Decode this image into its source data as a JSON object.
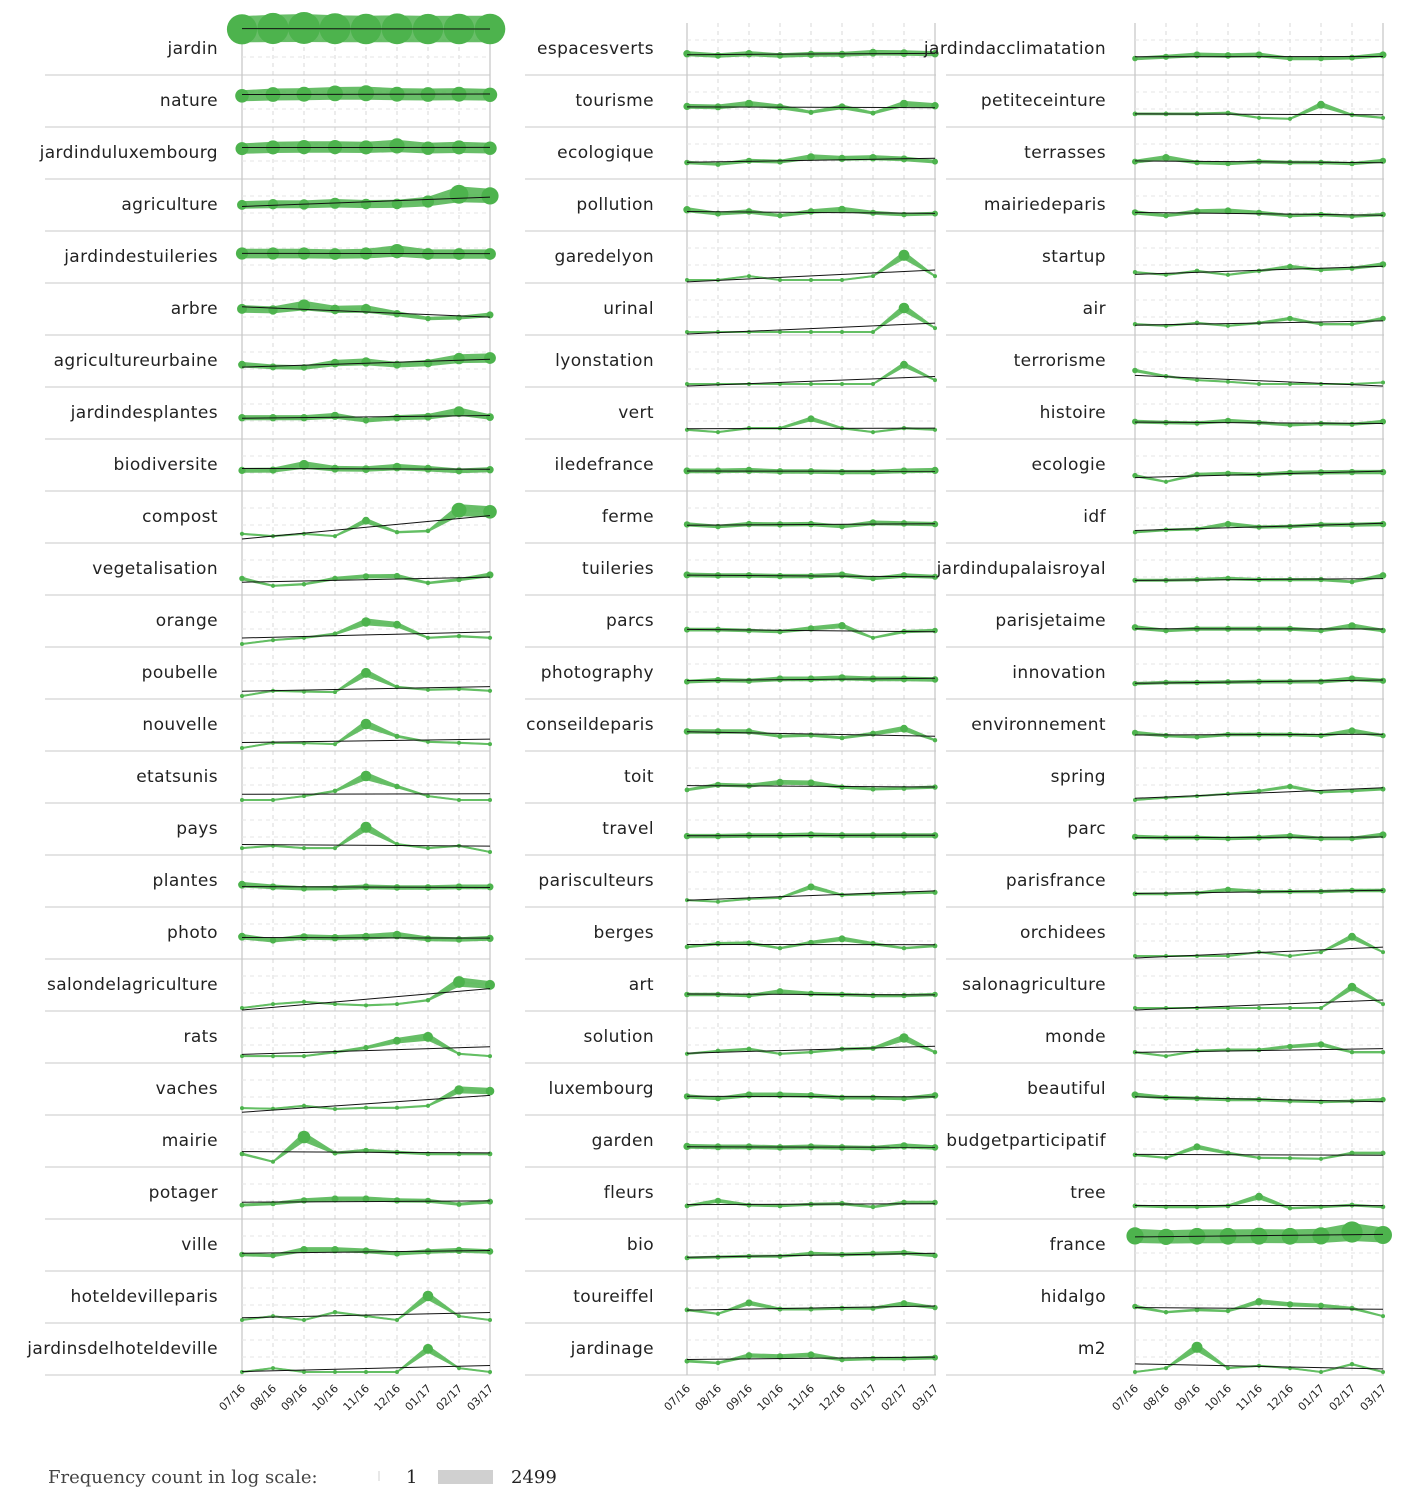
{
  "chart_data": {
    "type": "line",
    "months": [
      "07/16",
      "08/16",
      "09/16",
      "10/16",
      "11/16",
      "12/16",
      "01/17",
      "02/17",
      "03/17"
    ],
    "legend": {
      "title": "Frequency count in log scale:",
      "min_label": "1",
      "max_label": "2499",
      "min": 1,
      "max": 2499
    },
    "colors": {
      "series": "#63bf63",
      "fill": "#4db34d",
      "trend": "#111111",
      "grid": "#c8c8c8"
    },
    "columns": [
      [
        {
          "term": "jardin",
          "c": [
            2000,
            2300,
            2499,
            2200,
            2100,
            2150,
            2050,
            2100,
            2100
          ]
        },
        {
          "term": "nature",
          "c": [
            150,
            190,
            200,
            230,
            240,
            200,
            190,
            200,
            180
          ]
        },
        {
          "term": "jardinduluxembourg",
          "c": [
            130,
            160,
            170,
            170,
            160,
            210,
            140,
            160,
            140
          ]
        },
        {
          "term": "agriculture",
          "c": [
            60,
            68,
            66,
            80,
            70,
            72,
            110,
            400,
            300
          ]
        },
        {
          "term": "jardindestuileries",
          "c": [
            110,
            110,
            110,
            100,
            110,
            170,
            100,
            100,
            100
          ]
        },
        {
          "term": "arbre",
          "c": [
            60,
            50,
            110,
            55,
            60,
            25,
            10,
            12,
            20
          ]
        },
        {
          "term": "agricultureurbaine",
          "c": [
            30,
            20,
            18,
            40,
            50,
            30,
            40,
            90,
            100
          ]
        },
        {
          "term": "jardindesplantes",
          "c": [
            25,
            25,
            25,
            35,
            15,
            25,
            30,
            75,
            28
          ]
        },
        {
          "term": "biodiversite",
          "c": [
            22,
            23,
            60,
            30,
            28,
            40,
            30,
            20,
            25
          ]
        },
        {
          "term": "compost",
          "c": [
            2,
            1,
            2,
            1,
            30,
            3,
            4,
            200,
            150
          ]
        },
        {
          "term": "vegetalisation",
          "c": [
            10,
            2,
            3,
            10,
            15,
            16,
            4,
            8,
            20
          ]
        },
        {
          "term": "orange",
          "c": [
            0,
            1,
            2,
            5,
            50,
            30,
            2,
            3,
            2
          ]
        },
        {
          "term": "poubelle",
          "c": [
            0,
            1.5,
            1.2,
            1,
            60,
            4,
            2,
            2.5,
            1.5
          ]
        },
        {
          "term": "nouvelle",
          "c": [
            0,
            1.5,
            1.4,
            1,
            70,
            7,
            2,
            1.5,
            1
          ]
        },
        {
          "term": "etatsunis",
          "c": [
            0,
            0,
            1,
            4,
            70,
            10,
            1,
            0,
            0
          ]
        },
        {
          "term": "pays",
          "c": [
            1,
            2,
            1,
            1,
            80,
            3,
            1,
            2,
            0
          ]
        },
        {
          "term": "plantes",
          "c": [
            30,
            20,
            15,
            16,
            20,
            18,
            18,
            20,
            20
          ]
        },
        {
          "term": "photo",
          "c": [
            30,
            15,
            28,
            25,
            30,
            40,
            20,
            18,
            22
          ]
        },
        {
          "term": "salondelagriculture",
          "c": [
            0,
            1,
            2,
            1,
            0.6,
            1,
            3,
            100,
            60
          ]
        },
        {
          "term": "rats",
          "c": [
            1,
            1,
            1,
            3,
            8,
            30,
            60,
            2,
            1
          ]
        },
        {
          "term": "vaches",
          "c": [
            1,
            0.8,
            2,
            0.7,
            1.1,
            1.1,
            2,
            50,
            40
          ]
        },
        {
          "term": "mairie",
          "c": [
            5,
            0.5,
            120,
            6,
            10,
            7,
            5,
            5,
            5
          ]
        },
        {
          "term": "potager",
          "c": [
            6,
            8,
            15,
            20,
            20,
            15,
            14,
            7,
            12
          ]
        },
        {
          "term": "ville",
          "c": [
            10,
            8,
            25,
            25,
            20,
            12,
            18,
            22,
            18
          ]
        },
        {
          "term": "hoteldevilleparis",
          "c": [
            0,
            1,
            0,
            3,
            1,
            0,
            70,
            1,
            0
          ]
        },
        {
          "term": "jardinsdelhoteldeville",
          "c": [
            0,
            1,
            0,
            0,
            0,
            0,
            60,
            1,
            0
          ]
        }
      ],
      [
        {
          "term": "espacesverts",
          "c": [
            25,
            18,
            25,
            18,
            22,
            22,
            30,
            28,
            25
          ]
        },
        {
          "term": "tourisme",
          "c": [
            22,
            20,
            35,
            20,
            7,
            20,
            6,
            35,
            25
          ]
        },
        {
          "term": "ecologique",
          "c": [
            10,
            7,
            14,
            12,
            28,
            22,
            25,
            20,
            12
          ]
        },
        {
          "term": "pollution",
          "c": [
            25,
            12,
            18,
            8,
            18,
            26,
            14,
            10,
            12
          ]
        },
        {
          "term": "garedelyon",
          "c": [
            0,
            0,
            1,
            0,
            0,
            0,
            1,
            80,
            1
          ]
        },
        {
          "term": "urinal",
          "c": [
            0,
            0,
            0,
            0,
            0,
            0,
            0,
            70,
            1
          ]
        },
        {
          "term": "lyonstation",
          "c": [
            0,
            0,
            0,
            0,
            0,
            0,
            0,
            30,
            1
          ]
        },
        {
          "term": "vert",
          "c": [
            2,
            1,
            3,
            3,
            20,
            3,
            1,
            3,
            2
          ]
        },
        {
          "term": "iledefrance",
          "c": [
            20,
            20,
            22,
            18,
            18,
            16,
            16,
            20,
            22
          ]
        },
        {
          "term": "ferme",
          "c": [
            15,
            10,
            16,
            15,
            16,
            10,
            20,
            18,
            16
          ]
        },
        {
          "term": "tuileries",
          "c": [
            20,
            18,
            18,
            16,
            16,
            20,
            10,
            18,
            14
          ]
        },
        {
          "term": "parcs",
          "c": [
            12,
            12,
            10,
            8,
            15,
            25,
            2,
            8,
            10
          ]
        },
        {
          "term": "photography",
          "c": [
            12,
            16,
            14,
            20,
            20,
            24,
            20,
            20,
            18
          ]
        },
        {
          "term": "conseildeparis",
          "c": [
            18,
            18,
            18,
            7,
            9,
            5,
            12,
            30,
            3
          ]
        },
        {
          "term": "toit",
          "c": [
            5,
            14,
            12,
            22,
            20,
            9,
            6,
            7,
            9
          ]
        },
        {
          "term": "travel",
          "c": [
            16,
            16,
            18,
            18,
            20,
            18,
            18,
            18,
            18
          ]
        },
        {
          "term": "parisculteurs",
          "c": [
            1,
            0.5,
            1.5,
            2,
            20,
            4,
            5,
            6,
            7
          ]
        },
        {
          "term": "berges",
          "c": [
            4,
            8,
            9,
            3,
            10,
            20,
            8,
            3,
            5
          ]
        },
        {
          "term": "art",
          "c": [
            10,
            10,
            8,
            18,
            12,
            10,
            8,
            8,
            10
          ]
        },
        {
          "term": "solution",
          "c": [
            2,
            4,
            6,
            2,
            3,
            6,
            7,
            50,
            3
          ]
        },
        {
          "term": "luxembourg",
          "c": [
            15,
            10,
            20,
            20,
            18,
            12,
            12,
            10,
            18
          ]
        },
        {
          "term": "garden",
          "c": [
            22,
            20,
            20,
            18,
            20,
            18,
            16,
            24,
            18
          ]
        },
        {
          "term": "fleurs",
          "c": [
            5,
            14,
            6,
            5,
            7,
            8,
            4,
            10,
            10
          ]
        },
        {
          "term": "bio",
          "c": [
            5,
            6,
            7,
            7,
            12,
            10,
            12,
            14,
            8
          ]
        },
        {
          "term": "toureiffel",
          "c": [
            5,
            2,
            20,
            6,
            6,
            7,
            7,
            18,
            8
          ]
        },
        {
          "term": "jardinage",
          "c": [
            6,
            4,
            18,
            15,
            20,
            8,
            10,
            10,
            12
          ]
        }
      ],
      [
        {
          "term": "jardindacclimatation",
          "c": [
            10,
            14,
            20,
            18,
            20,
            10,
            10,
            12,
            20
          ]
        },
        {
          "term": "petiteceinture",
          "c": [
            5,
            5,
            5,
            6,
            2,
            1.5,
            30,
            4,
            2
          ]
        },
        {
          "term": "terrasses",
          "c": [
            12,
            25,
            10,
            8,
            12,
            10,
            10,
            8,
            14
          ]
        },
        {
          "term": "mairiedeparis",
          "c": [
            15,
            8,
            18,
            20,
            14,
            8,
            10,
            7,
            10
          ]
        },
        {
          "term": "startup",
          "c": [
            3,
            1.5,
            4,
            1.5,
            4,
            10,
            5,
            7,
            15
          ]
        },
        {
          "term": "air",
          "c": [
            3,
            2,
            4,
            2,
            4,
            10,
            3,
            3,
            10
          ]
        },
        {
          "term": "terrorisme",
          "c": [
            10,
            3,
            1,
            0.5,
            0,
            0,
            0,
            0,
            0.3
          ]
        },
        {
          "term": "histoire",
          "c": [
            12,
            10,
            9,
            14,
            10,
            6,
            8,
            7,
            12
          ]
        },
        {
          "term": "ecologie",
          "c": [
            8,
            2,
            10,
            12,
            10,
            14,
            15,
            16,
            16
          ]
        },
        {
          "term": "idf",
          "c": [
            3,
            5,
            6,
            16,
            9,
            10,
            14,
            14,
            16
          ]
        },
        {
          "term": "jardindupalaisroyal",
          "c": [
            7,
            7,
            8,
            10,
            8,
            8,
            8,
            5,
            18
          ]
        },
        {
          "term": "parisjetaime",
          "c": [
            18,
            10,
            14,
            14,
            14,
            14,
            10,
            24,
            10
          ]
        },
        {
          "term": "innovation",
          "c": [
            8,
            10,
            10,
            11,
            12,
            12,
            12,
            20,
            14
          ]
        },
        {
          "term": "environnement",
          "c": [
            14,
            8,
            6,
            10,
            10,
            10,
            8,
            20,
            8
          ]
        },
        {
          "term": "spring",
          "c": [
            0,
            0.5,
            1,
            2,
            4,
            10,
            3,
            4,
            6
          ]
        },
        {
          "term": "parc",
          "c": [
            14,
            12,
            12,
            10,
            12,
            16,
            10,
            10,
            20
          ]
        },
        {
          "term": "parisfrance",
          "c": [
            5,
            5,
            6,
            12,
            8,
            8,
            8,
            10,
            10
          ]
        },
        {
          "term": "orchidees",
          "c": [
            0,
            0,
            0,
            0,
            1,
            0,
            1,
            30,
            1
          ]
        },
        {
          "term": "salonagriculture",
          "c": [
            0,
            0,
            0,
            0,
            0,
            0,
            0,
            40,
            1
          ]
        },
        {
          "term": "monde",
          "c": [
            3,
            1,
            4,
            5,
            5,
            10,
            15,
            3,
            3
          ]
        },
        {
          "term": "beautiful",
          "c": [
            20,
            12,
            10,
            8,
            8,
            6,
            5,
            6,
            8
          ]
        },
        {
          "term": "budgetparticipatif",
          "c": [
            4,
            2,
            20,
            6,
            2,
            1.8,
            1.5,
            6,
            6
          ]
        },
        {
          "term": "tree",
          "c": [
            5,
            4,
            4,
            5,
            30,
            3,
            4,
            6,
            4
          ]
        },
        {
          "term": "france",
          "c": [
            300,
            250,
            280,
            280,
            290,
            280,
            300,
            600,
            350
          ]
        },
        {
          "term": "hidalgo",
          "c": [
            10,
            3,
            5,
            4,
            25,
            15,
            12,
            7,
            1
          ]
        },
        {
          "term": "m2",
          "c": [
            0,
            1,
            80,
            1,
            2,
            1,
            0,
            3,
            0
          ]
        }
      ]
    ]
  }
}
